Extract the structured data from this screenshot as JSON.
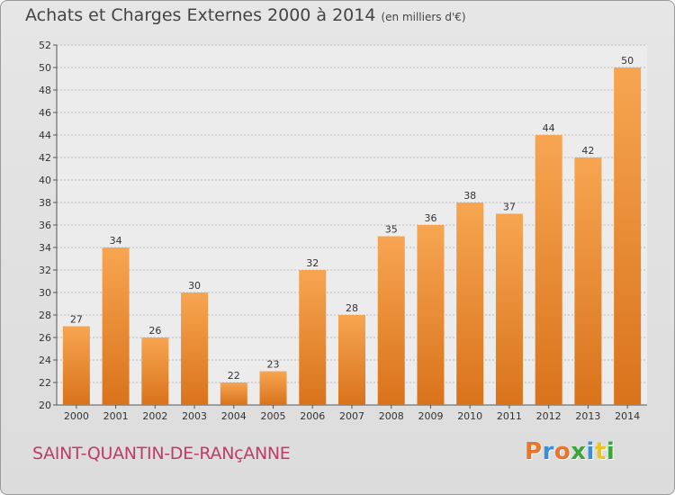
{
  "title": "Achats et Charges Externes 2000 à 2014",
  "unit": "(en milliers d'€)",
  "commune": "SAINT-QUANTIN-DE-RANçANNE",
  "logo": {
    "letters": [
      "P",
      "r",
      "o",
      "x",
      "i",
      "t",
      "i"
    ],
    "colors": [
      "#e8752a",
      "#3a8fd6",
      "#e8752a",
      "#3aa53a",
      "#3a8fd6",
      "#e8c42a",
      "#3aa53a"
    ]
  },
  "colors": {
    "bar_light": "#f7a551",
    "bar_dark": "#d9731b",
    "grid": "#bdbdbd"
  },
  "chart_data": {
    "type": "bar",
    "title": "Achats et Charges Externes 2000 à 2014",
    "categories": [
      "2000",
      "2001",
      "2002",
      "2003",
      "2004",
      "2005",
      "2006",
      "2007",
      "2008",
      "2009",
      "2010",
      "2011",
      "2012",
      "2013",
      "2014"
    ],
    "values": [
      27,
      34,
      26,
      30,
      22,
      23,
      32,
      28,
      35,
      36,
      38,
      37,
      44,
      42,
      50
    ],
    "ylim": [
      20,
      52
    ],
    "yticks": [
      20,
      22,
      24,
      26,
      28,
      30,
      32,
      34,
      36,
      38,
      40,
      42,
      44,
      46,
      48,
      50,
      52
    ],
    "grid": true,
    "xlabel": "",
    "ylabel": ""
  }
}
